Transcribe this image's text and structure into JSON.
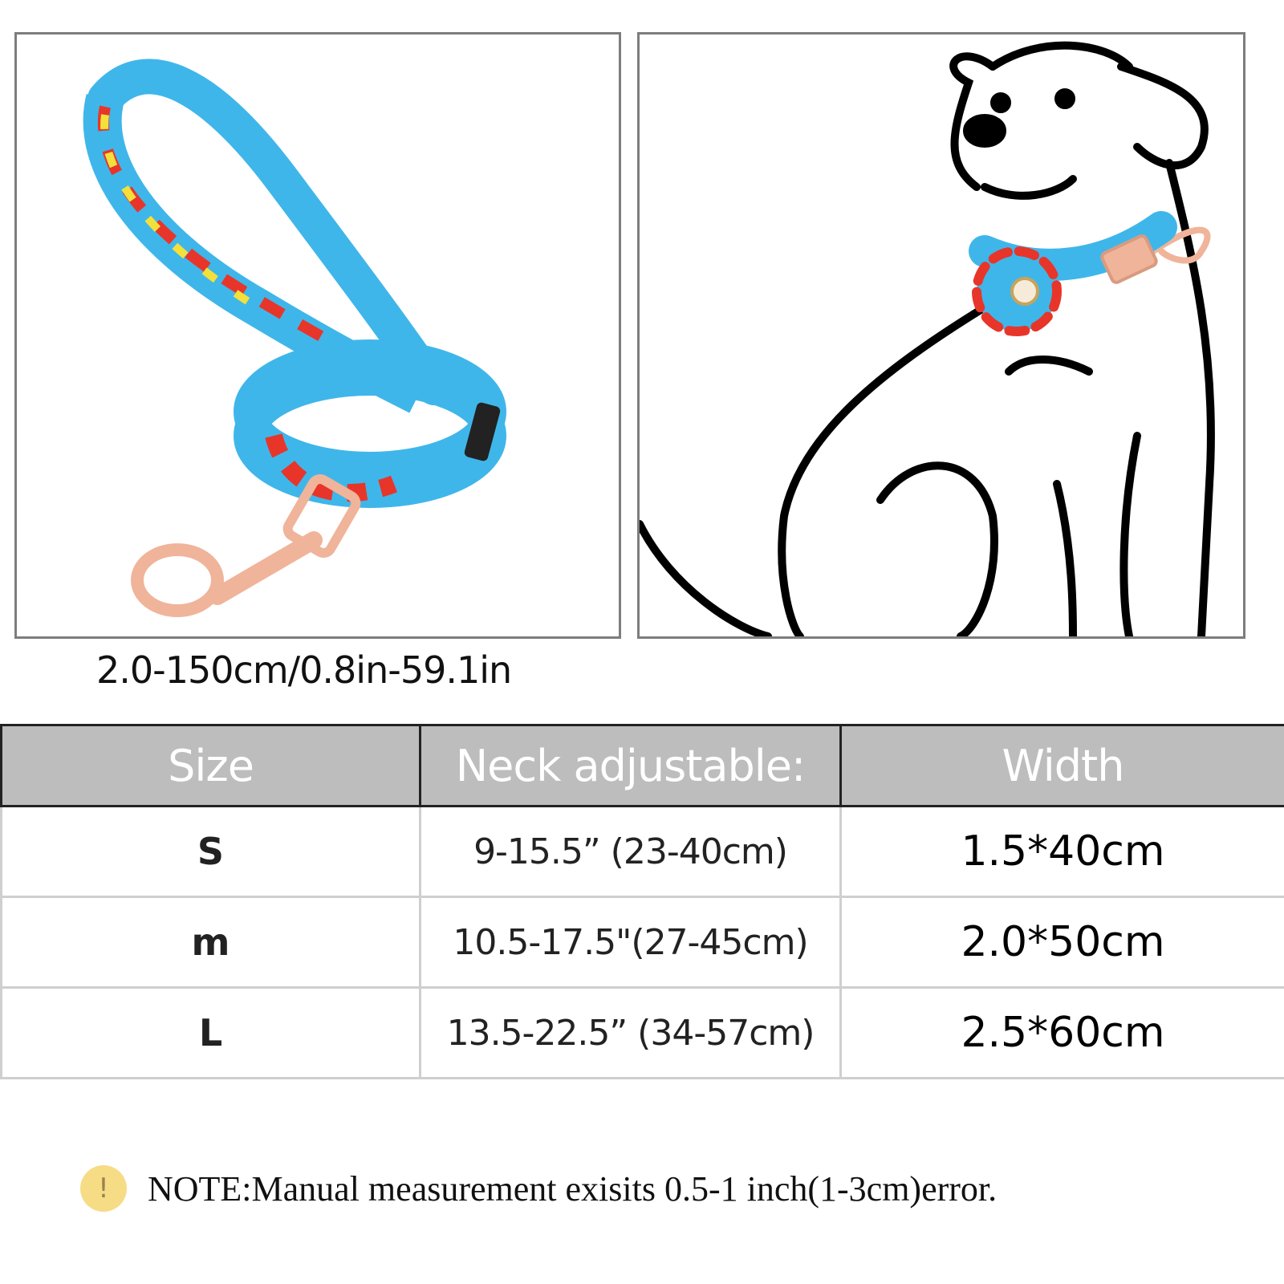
{
  "leash_length_caption": "2.0-150cm/0.8in-59.1in",
  "table": {
    "headers": [
      "Size",
      "Neck adjustable:",
      "Width"
    ],
    "rows": [
      {
        "size": "S",
        "neck": "9-15.5”  (23-40cm)",
        "width": "1.5*40cm"
      },
      {
        "size": "m",
        "neck": "10.5-17.5\"(27-45cm)",
        "width": "2.0*50cm"
      },
      {
        "size": "L",
        "neck": "13.5-22.5”  (34-57cm)",
        "width": "2.5*60cm"
      }
    ]
  },
  "note": {
    "icon": "!",
    "text": "NOTE:Manual measurement exisits 0.5-1 inch(1-3cm)error."
  },
  "colors": {
    "header_bg": "#bdbdbd",
    "leash_blue": "#3fb6ea",
    "hardware_rose_gold": "#f0b49a",
    "note_icon": "#f7dc86"
  }
}
